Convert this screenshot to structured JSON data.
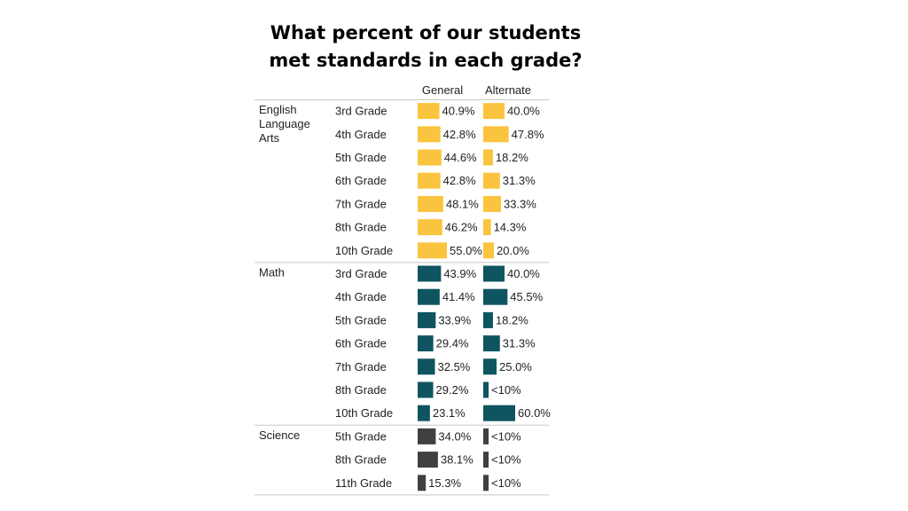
{
  "title_line1": "What percent of our students",
  "title_line2": "met standards in each grade?",
  "chart_data": {
    "type": "bar",
    "columns": [
      "General",
      "Alternate"
    ],
    "xlim": [
      0,
      100
    ],
    "colors": {
      "English Language Arts": "#fbc43e",
      "Math": "#0f5461",
      "Science": "#404040"
    },
    "groups": [
      {
        "name": "English Language Arts",
        "name_lines": [
          "English",
          "Language",
          "Arts"
        ],
        "rows": [
          {
            "grade": "3rd Grade",
            "general": 40.9,
            "general_label": "40.9%",
            "alternate": 40.0,
            "alternate_label": "40.0%"
          },
          {
            "grade": "4th Grade",
            "general": 42.8,
            "general_label": "42.8%",
            "alternate": 47.8,
            "alternate_label": "47.8%"
          },
          {
            "grade": "5th Grade",
            "general": 44.6,
            "general_label": "44.6%",
            "alternate": 18.2,
            "alternate_label": "18.2%"
          },
          {
            "grade": "6th Grade",
            "general": 42.8,
            "general_label": "42.8%",
            "alternate": 31.3,
            "alternate_label": "31.3%"
          },
          {
            "grade": "7th Grade",
            "general": 48.1,
            "general_label": "48.1%",
            "alternate": 33.3,
            "alternate_label": "33.3%"
          },
          {
            "grade": "8th Grade",
            "general": 46.2,
            "general_label": "46.2%",
            "alternate": 14.3,
            "alternate_label": "14.3%"
          },
          {
            "grade": "10th Grade",
            "general": 55.0,
            "general_label": "55.0%",
            "alternate": 20.0,
            "alternate_label": "20.0%"
          }
        ]
      },
      {
        "name": "Math",
        "name_lines": [
          "Math"
        ],
        "rows": [
          {
            "grade": "3rd Grade",
            "general": 43.9,
            "general_label": "43.9%",
            "alternate": 40.0,
            "alternate_label": "40.0%"
          },
          {
            "grade": "4th Grade",
            "general": 41.4,
            "general_label": "41.4%",
            "alternate": 45.5,
            "alternate_label": "45.5%"
          },
          {
            "grade": "5th Grade",
            "general": 33.9,
            "general_label": "33.9%",
            "alternate": 18.2,
            "alternate_label": "18.2%"
          },
          {
            "grade": "6th Grade",
            "general": 29.4,
            "general_label": "29.4%",
            "alternate": 31.3,
            "alternate_label": "31.3%"
          },
          {
            "grade": "7th Grade",
            "general": 32.5,
            "general_label": "32.5%",
            "alternate": 25.0,
            "alternate_label": "25.0%"
          },
          {
            "grade": "8th Grade",
            "general": 29.2,
            "general_label": "29.2%",
            "alternate": 5,
            "alternate_label": "<10%"
          },
          {
            "grade": "10th Grade",
            "general": 23.1,
            "general_label": "23.1%",
            "alternate": 60.0,
            "alternate_label": "60.0%"
          }
        ]
      },
      {
        "name": "Science",
        "name_lines": [
          "Science"
        ],
        "rows": [
          {
            "grade": "5th Grade",
            "general": 34.0,
            "general_label": "34.0%",
            "alternate": 5,
            "alternate_label": "<10%"
          },
          {
            "grade": "8th Grade",
            "general": 38.1,
            "general_label": "38.1%",
            "alternate": 5,
            "alternate_label": "<10%"
          },
          {
            "grade": "11th Grade",
            "general": 15.3,
            "general_label": "15.3%",
            "alternate": 5,
            "alternate_label": "<10%"
          }
        ]
      }
    ]
  }
}
